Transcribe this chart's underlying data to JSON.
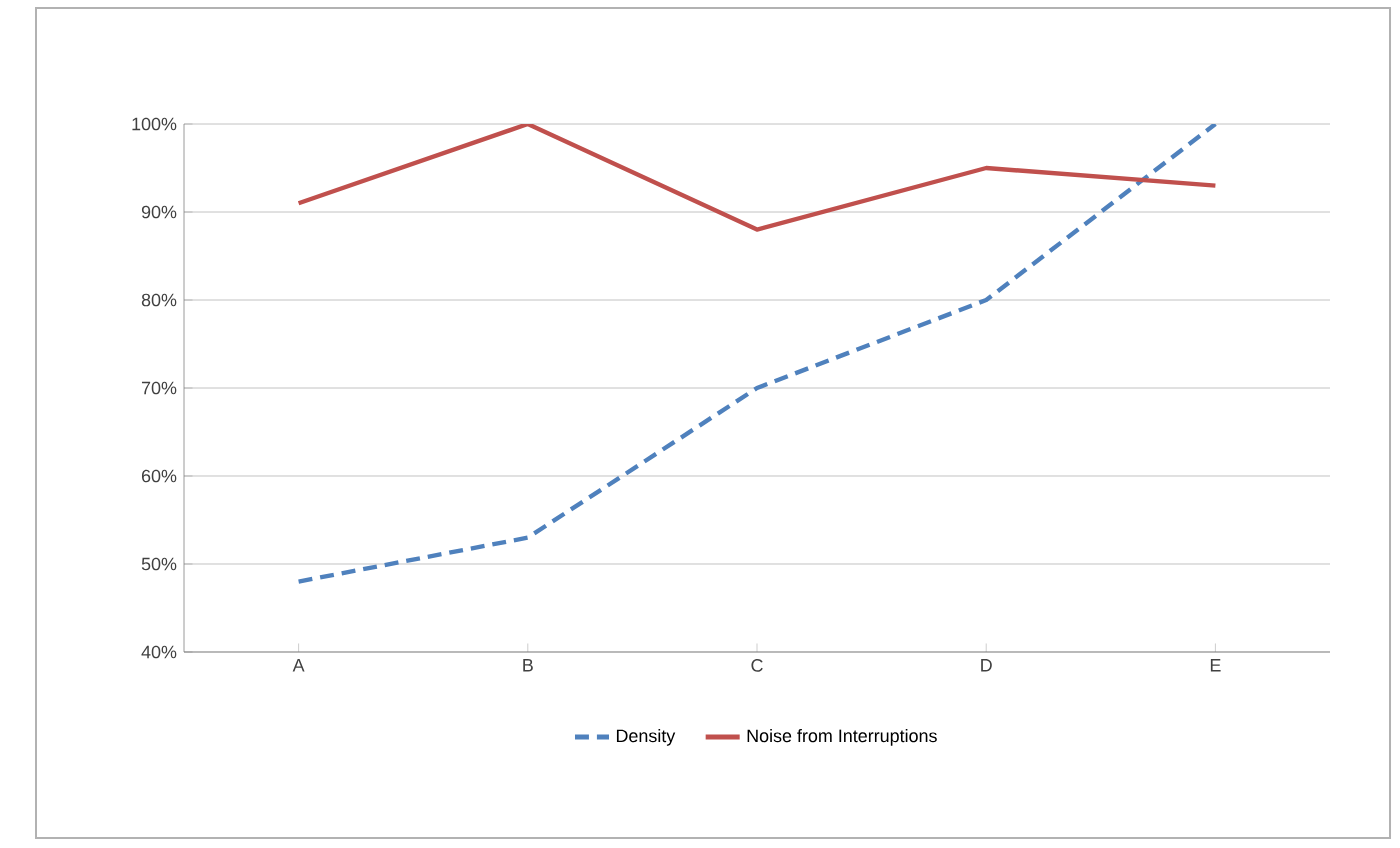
{
  "chart_data": {
    "type": "line",
    "categories": [
      "A",
      "B",
      "C",
      "D",
      "E"
    ],
    "series": [
      {
        "name": "Density",
        "color": "#4f81bd",
        "values": [
          48,
          53,
          70,
          80,
          100
        ],
        "line_style": "dashed"
      },
      {
        "name": "Noise from Interruptions",
        "color": "#c0504d",
        "values": [
          91,
          100,
          88,
          95,
          93
        ],
        "line_style": "solid"
      }
    ],
    "ylim": [
      40,
      100
    ],
    "yticks": [
      {
        "value": 40,
        "label": "40%"
      },
      {
        "value": 50,
        "label": "50%"
      },
      {
        "value": 60,
        "label": "60%"
      },
      {
        "value": 70,
        "label": "70%"
      },
      {
        "value": 80,
        "label": "80%"
      },
      {
        "value": 90,
        "label": "90%"
      },
      {
        "value": 100,
        "label": "100%"
      }
    ],
    "grid": "y",
    "legend": "bottom",
    "marker": "none"
  }
}
